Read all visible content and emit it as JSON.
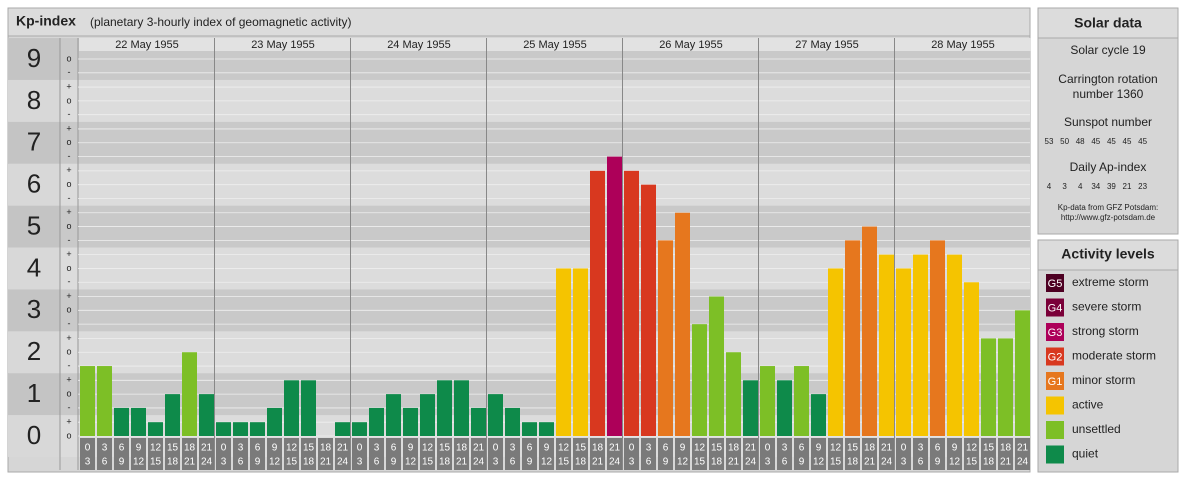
{
  "chart_data": {
    "type": "bar",
    "title": "Kp-index",
    "subtitle": "(planetary 3-hourly index of geomagnetic activity)",
    "days": [
      "22 May 1955",
      "23 May 1955",
      "24 May 1955",
      "25 May 1955",
      "26 May 1955",
      "27 May 1955",
      "28 May 1955"
    ],
    "time_slots": [
      [
        "0",
        "3"
      ],
      [
        "3",
        "6"
      ],
      [
        "6",
        "9"
      ],
      [
        "9",
        "12"
      ],
      [
        "12",
        "15"
      ],
      [
        "15",
        "18"
      ],
      [
        "18",
        "21"
      ],
      [
        "21",
        "24"
      ]
    ],
    "values": [
      1.67,
      1.67,
      0.67,
      0.67,
      0.33,
      1.0,
      2.0,
      1.0,
      0.33,
      0.33,
      0.33,
      0.67,
      1.33,
      1.33,
      0,
      0.33,
      0.33,
      0.67,
      1.0,
      0.67,
      1.0,
      1.33,
      1.33,
      0.67,
      1.0,
      0.67,
      0.33,
      0.33,
      4.0,
      4.0,
      6.33,
      6.67,
      6.33,
      6.0,
      4.67,
      5.33,
      2.67,
      3.33,
      2.0,
      1.33,
      1.67,
      1.33,
      1.67,
      1.0,
      4.0,
      4.67,
      5.0,
      4.33,
      4.0,
      4.33,
      4.67,
      4.33,
      3.67,
      2.33,
      2.33,
      3.0
    ],
    "colors": [
      "#7dbf26",
      "#7dbf26",
      "#0e8a4a",
      "#0e8a4a",
      "#0e8a4a",
      "#0e8a4a",
      "#7dbf26",
      "#0e8a4a",
      "#0e8a4a",
      "#0e8a4a",
      "#0e8a4a",
      "#0e8a4a",
      "#0e8a4a",
      "#0e8a4a",
      "#0e8a4a",
      "#0e8a4a",
      "#0e8a4a",
      "#0e8a4a",
      "#0e8a4a",
      "#0e8a4a",
      "#0e8a4a",
      "#0e8a4a",
      "#0e8a4a",
      "#0e8a4a",
      "#0e8a4a",
      "#0e8a4a",
      "#0e8a4a",
      "#0e8a4a",
      "#f5c400",
      "#f5c400",
      "#d8381f",
      "#ad0059",
      "#d8381f",
      "#d8381f",
      "#e6771e",
      "#e6771e",
      "#7dbf26",
      "#7dbf26",
      "#7dbf26",
      "#0e8a4a",
      "#7dbf26",
      "#0e8a4a",
      "#7dbf26",
      "#0e8a4a",
      "#f5c400",
      "#e6771e",
      "#e6771e",
      "#f5c400",
      "#f5c400",
      "#f5c400",
      "#e6771e",
      "#f5c400",
      "#f5c400",
      "#7dbf26",
      "#7dbf26",
      "#7dbf26"
    ],
    "ylim": [
      0,
      9
    ],
    "yticks": [
      0,
      1,
      2,
      3,
      4,
      5,
      6,
      7,
      8,
      9
    ],
    "yticks_minor": [
      {
        "value": 0,
        "label": "o"
      },
      {
        "value": 0.33,
        "label": "+"
      },
      {
        "value": 0.67,
        "label": "-"
      },
      {
        "value": 1,
        "label": "o"
      },
      {
        "value": 1.33,
        "label": "+"
      },
      {
        "value": 1.67,
        "label": "-"
      },
      {
        "value": 2,
        "label": "o"
      },
      {
        "value": 2.33,
        "label": "+"
      },
      {
        "value": 2.67,
        "label": "-"
      },
      {
        "value": 3,
        "label": "o"
      },
      {
        "value": 3.33,
        "label": "+"
      },
      {
        "value": 3.67,
        "label": "-"
      },
      {
        "value": 4,
        "label": "o"
      },
      {
        "value": 4.33,
        "label": "+"
      },
      {
        "value": 4.67,
        "label": "-"
      },
      {
        "value": 5,
        "label": "o"
      },
      {
        "value": 5.33,
        "label": "+"
      },
      {
        "value": 5.67,
        "label": "-"
      },
      {
        "value": 6,
        "label": "o"
      },
      {
        "value": 6.33,
        "label": "+"
      },
      {
        "value": 6.67,
        "label": "-"
      },
      {
        "value": 7,
        "label": "o"
      },
      {
        "value": 7.33,
        "label": "+"
      },
      {
        "value": 7.67,
        "label": "-"
      },
      {
        "value": 8,
        "label": "o"
      },
      {
        "value": 8.33,
        "label": "+"
      },
      {
        "value": 8.67,
        "label": "-"
      },
      {
        "value": 9,
        "label": "o"
      }
    ],
    "grid": true
  },
  "solar_data": {
    "title": "Solar data",
    "cycle": "Solar cycle 19",
    "carrington": [
      "Carrington rotation",
      "number 1360"
    ],
    "sunspot_title": "Sunspot number",
    "sunspot_numbers": [
      53,
      50,
      48,
      45,
      45,
      45,
      45
    ],
    "ap_title": "Daily Ap-index",
    "ap_index": [
      4,
      3,
      4,
      34,
      39,
      21,
      23
    ],
    "source": [
      "Kp-data from GFZ Potsdam:",
      "http://www.gfz-potsdam.de"
    ]
  },
  "activity_levels": {
    "title": "Activity levels",
    "levels": [
      {
        "code": "G5",
        "name": "extreme storm",
        "color": "#4d0022"
      },
      {
        "code": "G4",
        "name": "severe storm",
        "color": "#7a0038"
      },
      {
        "code": "G3",
        "name": "strong storm",
        "color": "#ad0059"
      },
      {
        "code": "G2",
        "name": "moderate storm",
        "color": "#d8381f"
      },
      {
        "code": "G1",
        "name": "minor storm",
        "color": "#e6771e"
      },
      {
        "name": "active",
        "color": "#f5c400"
      },
      {
        "name": "unsettled",
        "color": "#7dbf26"
      },
      {
        "name": "quiet",
        "color": "#0e8a4a"
      }
    ]
  }
}
